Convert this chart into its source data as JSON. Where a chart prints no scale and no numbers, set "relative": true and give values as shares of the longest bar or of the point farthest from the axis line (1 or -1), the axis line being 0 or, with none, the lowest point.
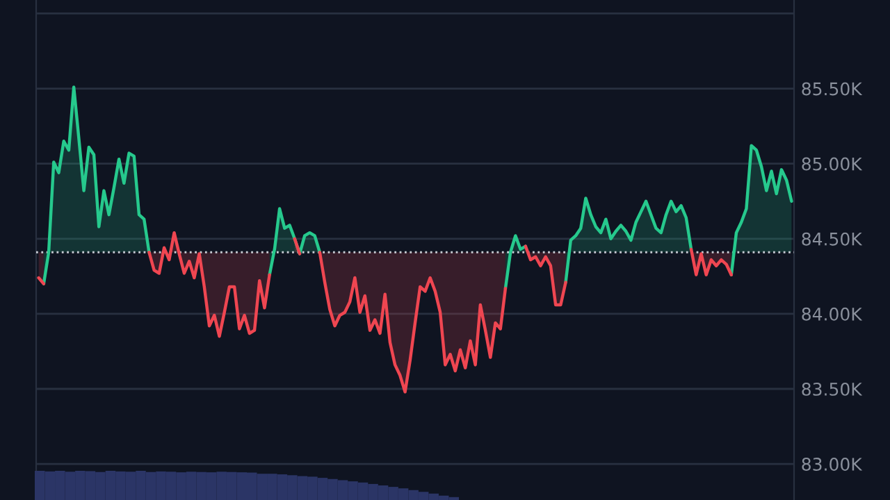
{
  "chart_data": [
    {
      "type": "line",
      "categories": [
        null,
        null,
        null,
        null,
        null,
        null,
        null,
        null,
        null,
        null,
        null,
        null,
        null,
        null,
        null,
        null,
        null,
        null,
        null,
        null,
        null,
        null,
        null,
        null,
        null,
        null,
        null,
        null,
        null,
        null,
        null,
        null,
        null,
        null,
        null,
        null,
        null,
        null,
        null,
        null,
        null,
        null,
        null,
        null,
        null,
        null,
        null,
        null,
        null,
        null,
        null,
        null,
        null,
        null,
        null,
        null,
        null,
        null,
        null,
        null,
        null,
        null,
        null,
        null,
        null,
        null,
        null,
        null,
        null,
        null,
        null,
        null,
        null,
        null,
        null,
        null,
        null,
        null,
        null,
        null,
        null,
        null,
        null,
        null,
        null,
        null,
        null,
        null,
        null,
        null,
        null,
        null,
        null,
        null,
        null,
        null,
        null,
        null,
        null,
        null,
        null,
        null,
        null,
        null,
        null,
        null,
        null,
        null,
        null,
        null,
        null,
        null,
        null,
        null,
        null,
        null,
        null,
        null,
        null,
        null,
        null,
        null,
        null,
        null,
        null,
        null,
        null,
        null,
        null,
        null,
        null,
        null,
        null,
        null,
        null,
        null,
        null,
        null,
        null,
        null,
        null,
        null,
        null,
        null,
        null,
        null,
        null,
        null,
        null,
        null,
        null
      ],
      "series": [
        {
          "color": "#26c98d",
          "values": [
            null,
            84.2,
            84.41,
            85.01,
            84.94,
            85.15,
            85.09,
            85.51,
            85.17,
            84.82,
            85.11,
            85.06,
            84.58,
            84.82,
            84.66,
            84.84,
            85.03,
            84.87,
            85.07,
            85.05,
            84.66,
            84.63,
            84.41,
            null,
            null,
            null,
            null,
            null,
            null,
            null,
            null,
            null,
            null,
            null,
            null,
            null,
            null,
            null,
            null,
            null,
            null,
            null,
            null,
            null,
            null,
            null,
            84.26,
            84.43,
            84.7,
            84.57,
            84.59,
            84.5,
            84.4,
            84.52,
            84.54,
            84.52,
            84.41,
            null,
            null,
            null,
            null,
            null,
            null,
            null,
            null,
            null,
            null,
            null,
            null,
            null,
            null,
            null,
            null,
            null,
            null,
            null,
            null,
            null,
            null,
            null,
            null,
            null,
            null,
            null,
            null,
            null,
            null,
            null,
            null,
            null,
            null,
            null,
            null,
            84.17,
            84.41,
            84.52,
            84.43,
            84.45,
            null,
            null,
            null,
            null,
            null,
            null,
            null,
            84.21,
            84.49,
            84.52,
            84.57,
            84.77,
            84.66,
            84.58,
            84.54,
            84.63,
            84.5,
            84.55,
            84.59,
            84.55,
            84.49,
            84.61,
            84.68,
            84.75,
            84.66,
            84.57,
            84.54,
            84.66,
            84.75,
            84.68,
            84.72,
            84.64,
            84.43,
            null,
            null,
            null,
            null,
            null,
            null,
            null,
            84.26,
            84.54,
            84.61,
            84.7,
            85.12,
            85.09,
            84.98,
            84.82,
            84.95,
            84.8,
            84.96,
            84.89,
            84.75
          ]
        },
        {
          "color": "#ef4651",
          "values": [
            84.24,
            84.2,
            null,
            null,
            null,
            null,
            null,
            null,
            null,
            null,
            null,
            null,
            null,
            null,
            null,
            null,
            null,
            null,
            null,
            null,
            null,
            null,
            84.41,
            84.29,
            84.27,
            84.44,
            84.36,
            84.54,
            84.4,
            84.27,
            84.35,
            84.24,
            84.4,
            84.18,
            83.92,
            83.99,
            83.85,
            84.01,
            84.18,
            84.18,
            83.9,
            83.99,
            83.87,
            83.89,
            84.22,
            84.04,
            84.26,
            null,
            null,
            null,
            null,
            84.5,
            84.4,
            null,
            null,
            null,
            84.41,
            84.21,
            84.03,
            83.92,
            83.99,
            84.01,
            84.08,
            84.24,
            84.01,
            84.12,
            83.89,
            83.96,
            83.87,
            84.13,
            83.81,
            83.66,
            83.59,
            83.48,
            83.69,
            83.94,
            84.18,
            84.15,
            84.24,
            84.15,
            84.01,
            83.66,
            83.73,
            83.62,
            83.76,
            83.64,
            83.82,
            83.66,
            84.06,
            83.89,
            83.71,
            83.94,
            83.9,
            84.17,
            null,
            null,
            null,
            84.45,
            84.36,
            84.38,
            84.32,
            84.38,
            84.32,
            84.06,
            84.06,
            84.21,
            null,
            null,
            null,
            null,
            null,
            null,
            null,
            null,
            null,
            null,
            null,
            null,
            null,
            null,
            null,
            null,
            null,
            null,
            null,
            null,
            null,
            null,
            null,
            null,
            84.43,
            84.26,
            84.4,
            84.26,
            84.36,
            84.32,
            84.36,
            84.33,
            84.26,
            null,
            null,
            null,
            null,
            null,
            null,
            null,
            null,
            null,
            null,
            null,
            null
          ]
        }
      ],
      "ylim": [
        82.76,
        86.09
      ],
      "yticks": [
        {
          "value": 83.0,
          "label": "83.00K"
        },
        {
          "value": 83.5,
          "label": "83.50K"
        },
        {
          "value": 84.0,
          "label": "84.00K"
        },
        {
          "value": 84.5,
          "label": "84.50K"
        },
        {
          "value": 85.0,
          "label": "85.00K"
        },
        {
          "value": 85.5,
          "label": "85.50K"
        },
        {
          "value": 86.0,
          "label": null
        }
      ],
      "grid": "y",
      "tick_labels": "y",
      "ref_lines": [
        {
          "axis": "y",
          "value": 84.41,
          "color": "#c8ccd4",
          "line_style": "dotted"
        }
      ]
    },
    {
      "type": "bar",
      "relative": true,
      "tick_labels": false,
      "color": "#2b3566",
      "categories": [
        null,
        null,
        null,
        null,
        null,
        null,
        null,
        null,
        null,
        null,
        null,
        null,
        null,
        null,
        null,
        null,
        null,
        null,
        null,
        null,
        null,
        null,
        null,
        null,
        null,
        null,
        null,
        null,
        null,
        null,
        null,
        null,
        null,
        null,
        null,
        null,
        null,
        null,
        null,
        null,
        null,
        null
      ],
      "values": [
        1,
        0.98,
        1,
        0.97,
        1,
        0.99,
        0.96,
        1,
        0.98,
        0.97,
        1,
        0.96,
        0.98,
        0.97,
        0.95,
        0.97,
        0.96,
        0.95,
        0.97,
        0.96,
        0.95,
        0.94,
        0.9,
        0.9,
        0.88,
        0.85,
        0.82,
        0.8,
        0.76,
        0.72,
        0.68,
        0.64,
        0.6,
        0.55,
        0.5,
        0.45,
        0.4,
        0.34,
        0.28,
        0.22,
        0.15,
        0.1
      ]
    }
  ]
}
